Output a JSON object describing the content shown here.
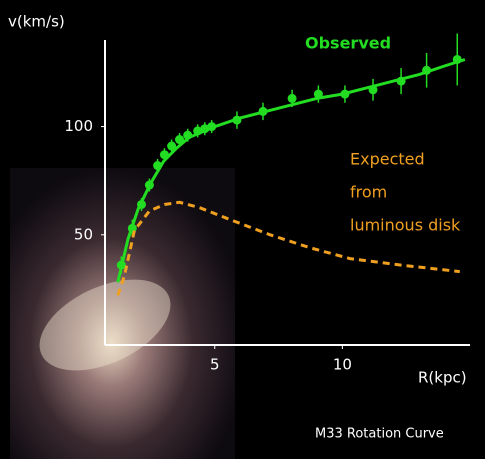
{
  "chart_data": {
    "type": "scatter",
    "y_label": "v(km/s)",
    "x_label": "R(kpc)",
    "caption": "M33 Rotation Curve",
    "xlim": [
      0.7,
      15
    ],
    "ylim": [
      0,
      140
    ],
    "xticks": [
      5,
      10
    ],
    "yticks": [
      50,
      100
    ],
    "grid": false,
    "series": [
      {
        "name": "Observed",
        "color": "#22dd22",
        "style": "points",
        "x": [
          1.34,
          1.77,
          2.13,
          2.44,
          2.76,
          3.03,
          3.31,
          3.62,
          3.94,
          4.33,
          4.61,
          4.88,
          5.87,
          6.89,
          8.03,
          9.06,
          10.1,
          11.2,
          12.3,
          13.3,
          14.5
        ],
        "values": [
          36,
          53,
          64,
          73,
          82,
          87,
          91,
          94,
          96,
          98,
          99,
          100,
          103,
          107,
          113,
          115,
          115,
          117,
          121,
          126,
          131
        ],
        "errors": [
          4,
          4,
          3,
          3,
          3,
          3,
          3,
          3,
          3,
          3,
          3,
          3,
          4,
          4,
          4,
          4,
          4,
          5,
          6,
          8,
          12
        ]
      },
      {
        "color": "#22dd22",
        "style": "line",
        "x": [
          1.2,
          1.6,
          2,
          2.5,
          3,
          3.5,
          4,
          5,
          6,
          7,
          8,
          9,
          10,
          11,
          12,
          13,
          14,
          14.8
        ],
        "values": [
          28,
          48,
          62,
          74,
          84,
          90,
          95,
          100,
          104,
          107,
          110,
          113,
          115,
          118,
          121,
          124,
          128,
          131
        ]
      },
      {
        "label_lines": [
          "Expected",
          "from",
          "luminous disk"
        ],
        "color": "#f0a020",
        "style": "dashed",
        "x": [
          1.2,
          1.46,
          1.85,
          2.44,
          3.03,
          3.62,
          4.41,
          5.6,
          7.17,
          8.74,
          10.3,
          12.3,
          14.6
        ],
        "values": [
          22,
          31,
          52,
          61,
          64,
          65,
          62.5,
          57,
          50,
          44,
          39,
          36,
          33
        ]
      }
    ]
  }
}
